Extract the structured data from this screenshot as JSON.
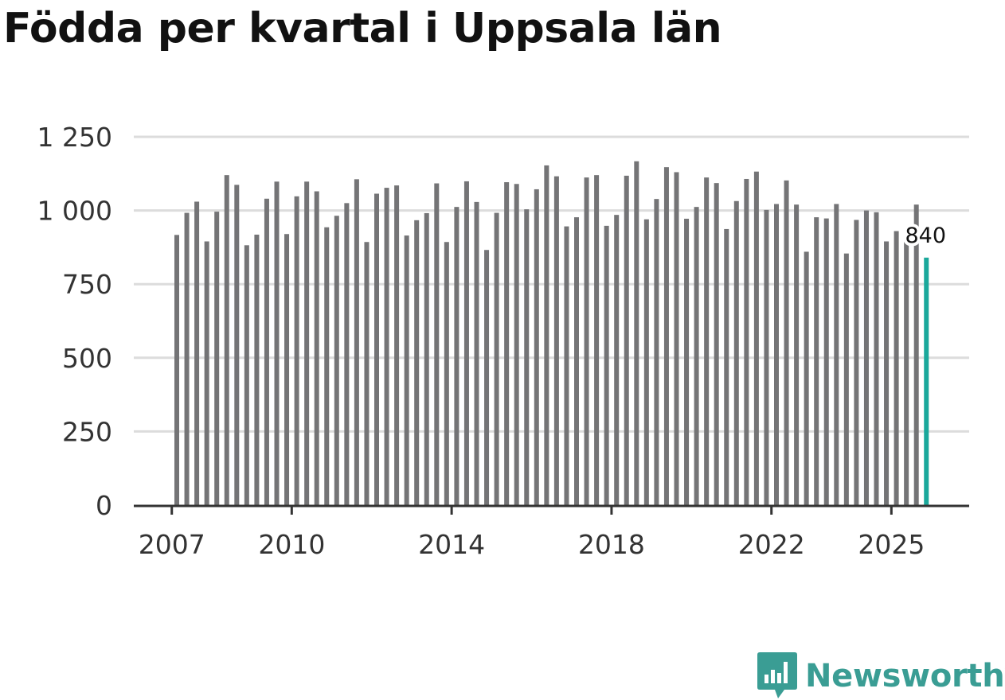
{
  "header": {
    "title": "Födda per kvartal i Uppsala län"
  },
  "logo": {
    "text": "Newsworthy"
  },
  "colors": {
    "bar": "#747476",
    "highlight": "#1aa89b",
    "grid": "#dcdcdc",
    "axis": "#333333",
    "brand": "#3a9d94"
  },
  "chart_data": {
    "type": "bar",
    "title": "Födda per kvartal i Uppsala län",
    "xlabel": "",
    "ylabel": "",
    "ylim": [
      0,
      1250
    ],
    "yticks": [
      0,
      250,
      500,
      750,
      1000,
      1250
    ],
    "ytick_labels": [
      "0",
      "250",
      "500",
      "750",
      "1 000",
      "1 250"
    ],
    "xtick_labels": [
      "2007",
      "2010",
      "2014",
      "2018",
      "2022",
      "2025"
    ],
    "start": "2007Q1",
    "values": [
      917,
      992,
      1030,
      895,
      996,
      1120,
      1087,
      882,
      918,
      1040,
      1098,
      920,
      1048,
      1098,
      1065,
      943,
      982,
      1025,
      1106,
      893,
      1057,
      1077,
      1085,
      915,
      967,
      991,
      1092,
      893,
      1012,
      1099,
      1029,
      866,
      992,
      1096,
      1090,
      1004,
      1072,
      1153,
      1116,
      946,
      977,
      1112,
      1120,
      948,
      985,
      1118,
      1167,
      970,
      1039,
      1147,
      1130,
      972,
      1012,
      1112,
      1093,
      937,
      1032,
      1107,
      1132,
      1002,
      1022,
      1102,
      1020,
      860,
      977,
      973,
      1022,
      854,
      968,
      1000,
      994,
      895,
      930,
      900,
      1020,
      840
    ],
    "highlight": {
      "label": "840",
      "value": 840,
      "period": "2025Q4"
    }
  }
}
